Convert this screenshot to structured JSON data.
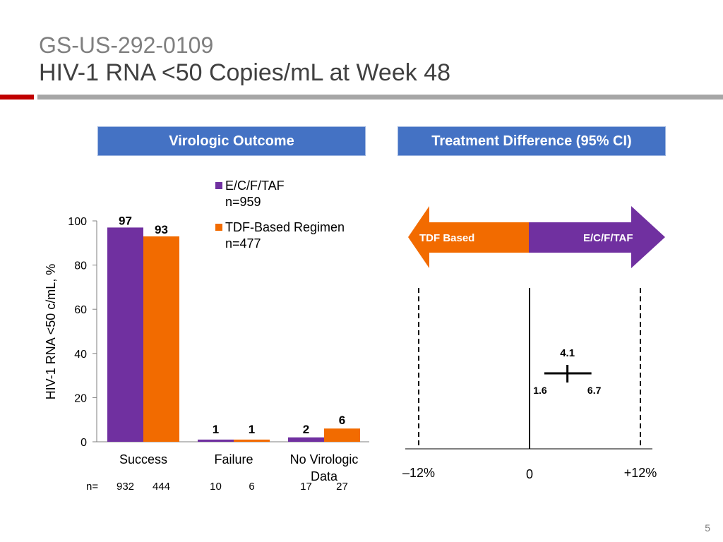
{
  "header": {
    "study_id": "GS-US-292-0109",
    "title": "HIV-1 RNA <50 Copies/mL at Week 48"
  },
  "panels": {
    "left_title": "Virologic Outcome",
    "right_title": "Treatment Difference (95% CI)"
  },
  "colors": {
    "series_1": "#7030a0",
    "series_2": "#f26b00",
    "header_box": "#4472c4",
    "accent_red": "#c00000"
  },
  "slide_number": "5",
  "chart_data": [
    {
      "type": "bar",
      "ylabel": "HIV-1 RNA <50 c/mL, %",
      "ylim": [
        0,
        100
      ],
      "yticks": [
        "0",
        "20",
        "40",
        "60",
        "80",
        "100"
      ],
      "categories": [
        "Success",
        "Failure",
        "No Virologic Data"
      ],
      "series": [
        {
          "name": "E/C/F/TAF",
          "legend_sub": "n=959",
          "values": [
            97,
            1,
            2
          ]
        },
        {
          "name": "TDF-Based Regimen",
          "legend_sub": "n=477",
          "values": [
            93,
            1,
            6
          ]
        }
      ],
      "n_label": "n=",
      "n_values": [
        [
          "932",
          "444"
        ],
        [
          "10",
          "6"
        ],
        [
          "17",
          "27"
        ]
      ],
      "grid": false,
      "legend": "top-right"
    },
    {
      "type": "forest",
      "arrow_left": "TDF Based",
      "arrow_right": "E/C/F/TAF",
      "x_range": [
        -12,
        12
      ],
      "x_ticks": [
        "–12%",
        "0",
        "+12%"
      ],
      "point": {
        "value": 4.1,
        "label": "4.1",
        "ci_low": 1.6,
        "ci_low_label": "1.6",
        "ci_high": 6.7,
        "ci_high_label": "6.7"
      }
    }
  ]
}
